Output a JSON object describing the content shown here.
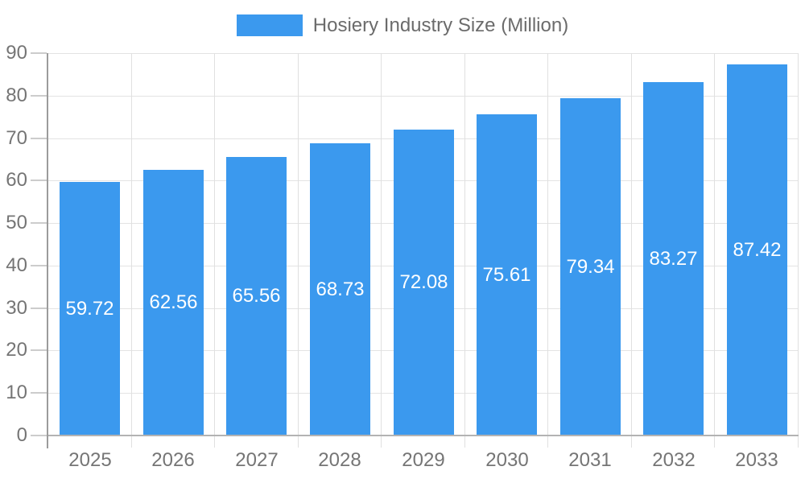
{
  "chart_data": {
    "type": "bar",
    "title": "",
    "legend": {
      "label": "Hosiery Industry Size (Million)",
      "position": "top-center"
    },
    "categories": [
      "2025",
      "2026",
      "2027",
      "2028",
      "2029",
      "2030",
      "2031",
      "2032",
      "2033"
    ],
    "series": [
      {
        "name": "Hosiery Industry Size (Million)",
        "values": [
          59.72,
          62.56,
          65.56,
          68.73,
          72.08,
          75.61,
          79.34,
          83.27,
          87.42
        ]
      }
    ],
    "value_labels": [
      "59.72",
      "62.56",
      "65.56",
      "68.73",
      "72.08",
      "75.61",
      "79.34",
      "83.27",
      "87.42"
    ],
    "xlabel": "",
    "ylabel": "",
    "ylim": [
      0,
      90
    ],
    "ytick_step": 10,
    "grid": "horizontal and vertical gridlines on",
    "value_label_position": "centered inside bars",
    "colors": {
      "bar": "#3B99EE",
      "value_label_text": "#ffffff",
      "axis_text": "#757575",
      "legend_text": "#6b6b6b",
      "gridline": "#e3e3e3",
      "vertical_gridline": "#e0e0e0",
      "axis_line": "#9b9b9b",
      "baseline": "#b3b3b3",
      "tick": "#cccccc",
      "background": "#ffffff"
    }
  }
}
